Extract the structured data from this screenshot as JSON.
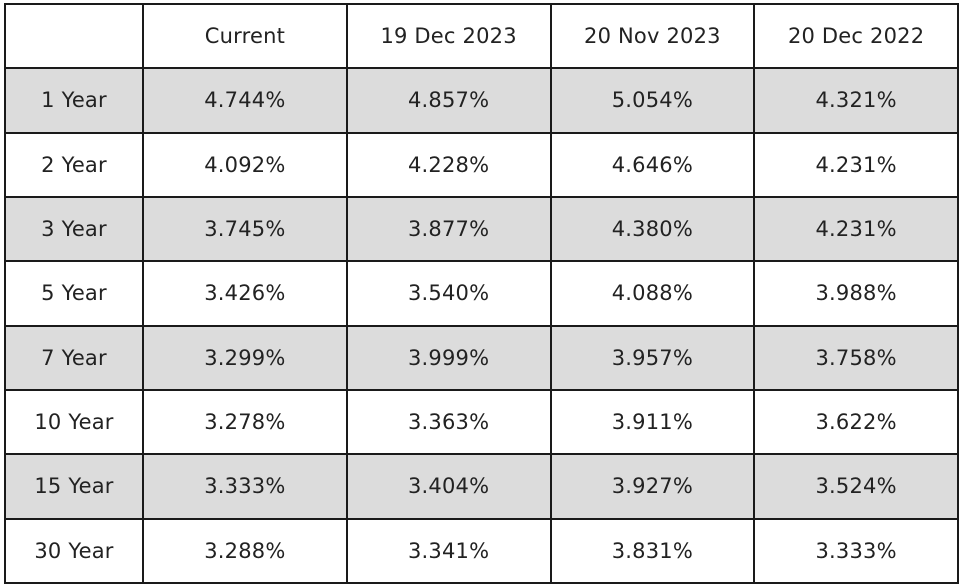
{
  "chart_data": {
    "type": "table",
    "columns": [
      "",
      "Current",
      "19 Dec 2023",
      "20 Nov 2023",
      "20 Dec 2022"
    ],
    "rows": [
      {
        "tenor": "1 Year",
        "values": [
          "4.744%",
          "4.857%",
          "5.054%",
          "4.321%"
        ]
      },
      {
        "tenor": "2 Year",
        "values": [
          "4.092%",
          "4.228%",
          "4.646%",
          "4.231%"
        ]
      },
      {
        "tenor": "3 Year",
        "values": [
          "3.745%",
          "3.877%",
          "4.380%",
          "4.231%"
        ]
      },
      {
        "tenor": "5 Year",
        "values": [
          "3.426%",
          "3.540%",
          "4.088%",
          "3.988%"
        ]
      },
      {
        "tenor": "7 Year",
        "values": [
          "3.299%",
          "3.999%",
          "3.957%",
          "3.758%"
        ]
      },
      {
        "tenor": "10 Year",
        "values": [
          "3.278%",
          "3.363%",
          "3.911%",
          "3.622%"
        ]
      },
      {
        "tenor": "15 Year",
        "values": [
          "3.333%",
          "3.404%",
          "3.927%",
          "3.524%"
        ]
      },
      {
        "tenor": "30 Year",
        "values": [
          "3.288%",
          "3.341%",
          "3.831%",
          "3.333%"
        ]
      }
    ],
    "shaded_row_color": "#dcdcdc",
    "border_color": "#1a1a1a"
  }
}
